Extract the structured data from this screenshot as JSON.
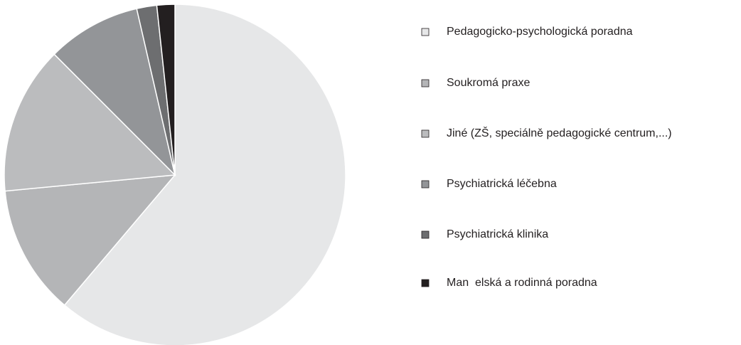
{
  "chart_data": {
    "type": "pie",
    "categories": [
      "Pedagogicko-psychologická poradna",
      "Soukromá praxe",
      "Jiné (ZŠ, speciálně pedagogické centrum,...)",
      "Psychiatrická léčebna",
      "Psychiatrická klinika",
      "Man  elská a rodinná poradna"
    ],
    "values": [
      61.2,
      12.3,
      14.0,
      8.9,
      1.9,
      1.7
    ],
    "colors": [
      "#e6e7e8",
      "#b4b5b7",
      "#bbbcbe",
      "#939598",
      "#6d6e70",
      "#231f20"
    ]
  }
}
